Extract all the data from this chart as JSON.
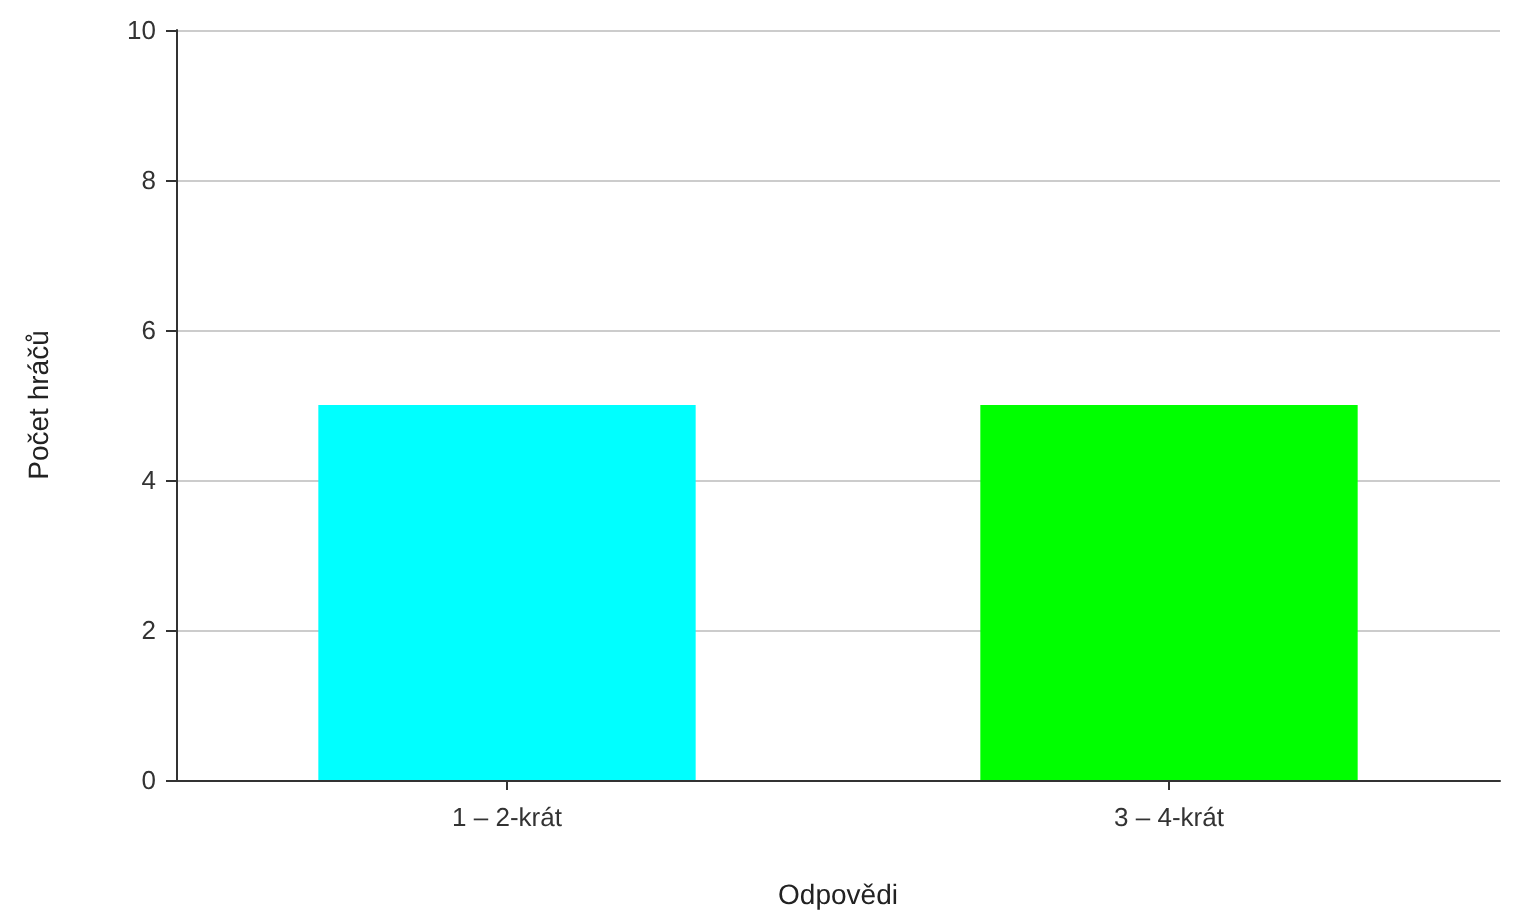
{
  "chart_data": {
    "type": "bar",
    "xlabel": "Odpovědi",
    "ylabel": "Počet hráčů",
    "categories": [
      "1 – 2-krát",
      "3 – 4-krát"
    ],
    "values": [
      5,
      5
    ],
    "colors": [
      "#00ffff",
      "#00ff00"
    ],
    "ylim": [
      0,
      10
    ],
    "yticks": [
      0,
      2,
      4,
      6,
      8,
      10
    ],
    "grid": "y"
  }
}
